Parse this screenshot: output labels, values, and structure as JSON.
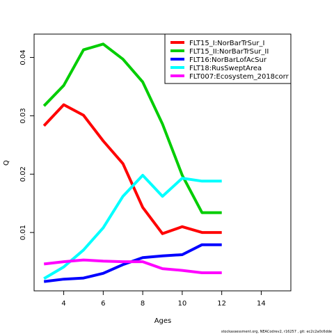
{
  "chart_data": {
    "type": "line",
    "xlabel": "Ages",
    "ylabel": "Q",
    "xlim": [
      2.5,
      15.5
    ],
    "ylim": [
      0.0,
      0.044
    ],
    "xticks": [
      4,
      6,
      8,
      10,
      12,
      14
    ],
    "yticks": [
      0.01,
      0.02,
      0.03,
      0.04
    ],
    "ytick_labels": [
      "0.01",
      "0.02",
      "0.03",
      "0.04"
    ],
    "grid": false,
    "legend_position": "top-right",
    "x": [
      3,
      4,
      5,
      6,
      7,
      8,
      9,
      10,
      11,
      12
    ],
    "series": [
      {
        "name": "FLT15_I:NorBarTrSur_I",
        "color": "#ff0000",
        "values": [
          0.0283,
          0.0319,
          0.0301,
          0.0257,
          0.0218,
          0.0143,
          0.0098,
          0.011,
          0.01,
          0.01
        ]
      },
      {
        "name": "FLT15_II:NorBarTrSur_II",
        "color": "#00cd00",
        "values": [
          0.0317,
          0.0352,
          0.0413,
          0.0423,
          0.0397,
          0.0358,
          0.0286,
          0.0198,
          0.0134,
          0.0134
        ]
      },
      {
        "name": "FLT16:NorBarLofAcSur",
        "color": "#0000ff",
        "values": [
          0.0016,
          0.002,
          0.0022,
          0.003,
          0.0045,
          0.0057,
          0.006,
          0.0062,
          0.0079,
          0.0079
        ]
      },
      {
        "name": "FLT18:RusSweptArea",
        "color": "#00ffff",
        "values": [
          0.0021,
          0.0041,
          0.007,
          0.0108,
          0.0162,
          0.0198,
          0.0162,
          0.0193,
          0.0188,
          0.0188
        ]
      },
      {
        "name": "FLT007:Ecosystem_2018corr",
        "color": "#ff00ff",
        "values": [
          0.0046,
          0.005,
          0.0053,
          0.0051,
          0.005,
          0.005,
          0.0038,
          0.0035,
          0.0031,
          0.0031
        ]
      }
    ],
    "footer": "stockassessment.org, NEACodrev2, r16257 , git: ec2c2a0c6dde"
  }
}
